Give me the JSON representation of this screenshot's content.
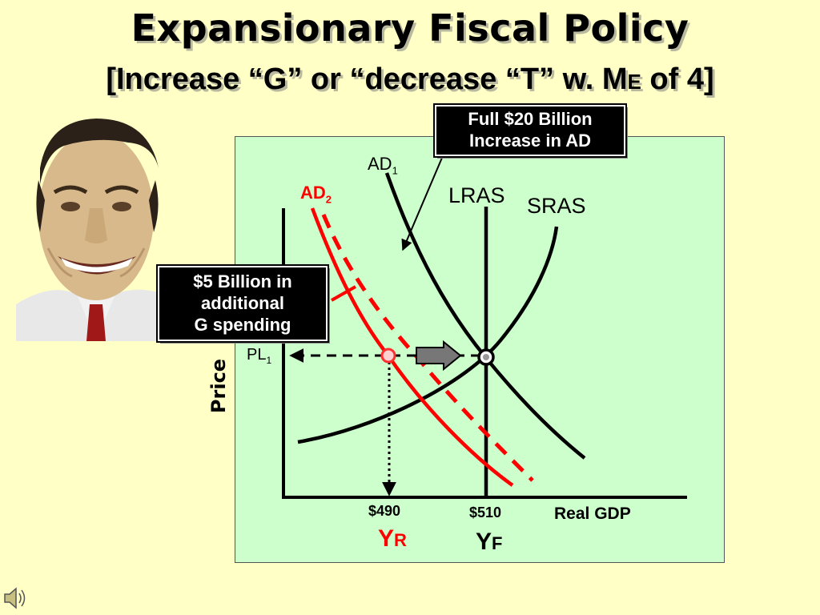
{
  "slide": {
    "title": "Expansionary Fiscal Policy",
    "subtitle_pre": "[Increase “G” or “decrease “T” w. M",
    "subtitle_sub": "E",
    "subtitle_post": " of 4]"
  },
  "callouts": {
    "top_line1": "Full $20 Billion",
    "top_line2": "Increase in AD",
    "left_line1": "$5 Billion in",
    "left_line2": "additional",
    "left_line3": "G spending"
  },
  "labels": {
    "ad1_main": "AD",
    "ad1_sub": "1",
    "ad2_main": "AD",
    "ad2_sub": "2",
    "lras": "LRAS",
    "sras": "SRAS",
    "pl_main": "PL",
    "pl_sub": "1",
    "price_axis": "Price",
    "gdp_axis": "Real GDP",
    "yr_value": "$490",
    "yf_value": "$510",
    "yr_main": "Y",
    "yr_sub": "R",
    "yf_main": "Y",
    "yf_sub": "F"
  },
  "colors": {
    "background": "#ffffc6",
    "panel": "#ccffcc",
    "ad2": "#ff0000",
    "curves": "#000000"
  },
  "icons": {
    "speaker": "speaker-icon",
    "arrow": "shift-arrow-icon"
  }
}
